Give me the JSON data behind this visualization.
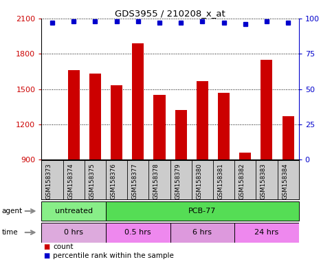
{
  "title": "GDS3955 / 210208_x_at",
  "samples": [
    "GSM158373",
    "GSM158374",
    "GSM158375",
    "GSM158376",
    "GSM158377",
    "GSM158378",
    "GSM158379",
    "GSM158380",
    "GSM158381",
    "GSM158382",
    "GSM158383",
    "GSM158384"
  ],
  "counts": [
    890,
    1660,
    1630,
    1530,
    1890,
    1450,
    1320,
    1570,
    1470,
    960,
    1750,
    1270
  ],
  "percentile_ranks": [
    97,
    98,
    98,
    98,
    98,
    97,
    97,
    98,
    97,
    96,
    98,
    97
  ],
  "ylim_left": [
    900,
    2100
  ],
  "yticks_left": [
    900,
    1200,
    1500,
    1800,
    2100
  ],
  "ylim_right": [
    0,
    100
  ],
  "yticks_right": [
    0,
    25,
    50,
    75,
    100
  ],
  "bar_color": "#cc0000",
  "dot_color": "#0000cc",
  "agent_row": [
    {
      "label": "untreated",
      "start": 0,
      "end": 3,
      "color": "#88ee88"
    },
    {
      "label": "PCB-77",
      "start": 3,
      "end": 12,
      "color": "#55dd55"
    }
  ],
  "time_row": [
    {
      "label": "0 hrs",
      "start": 0,
      "end": 3,
      "color": "#ddaadd"
    },
    {
      "label": "0.5 hrs",
      "start": 3,
      "end": 6,
      "color": "#ee88ee"
    },
    {
      "label": "6 hrs",
      "start": 6,
      "end": 9,
      "color": "#dd99dd"
    },
    {
      "label": "24 hrs",
      "start": 9,
      "end": 12,
      "color": "#ee88ee"
    }
  ],
  "legend_count_color": "#cc0000",
  "legend_dot_color": "#0000cc",
  "axis_label_color": "#cc0000",
  "right_axis_color": "#0000cc",
  "background_color": "#ffffff",
  "plot_bg_color": "#ffffff",
  "grid_color": "#000000",
  "sample_bg_color": "#cccccc"
}
